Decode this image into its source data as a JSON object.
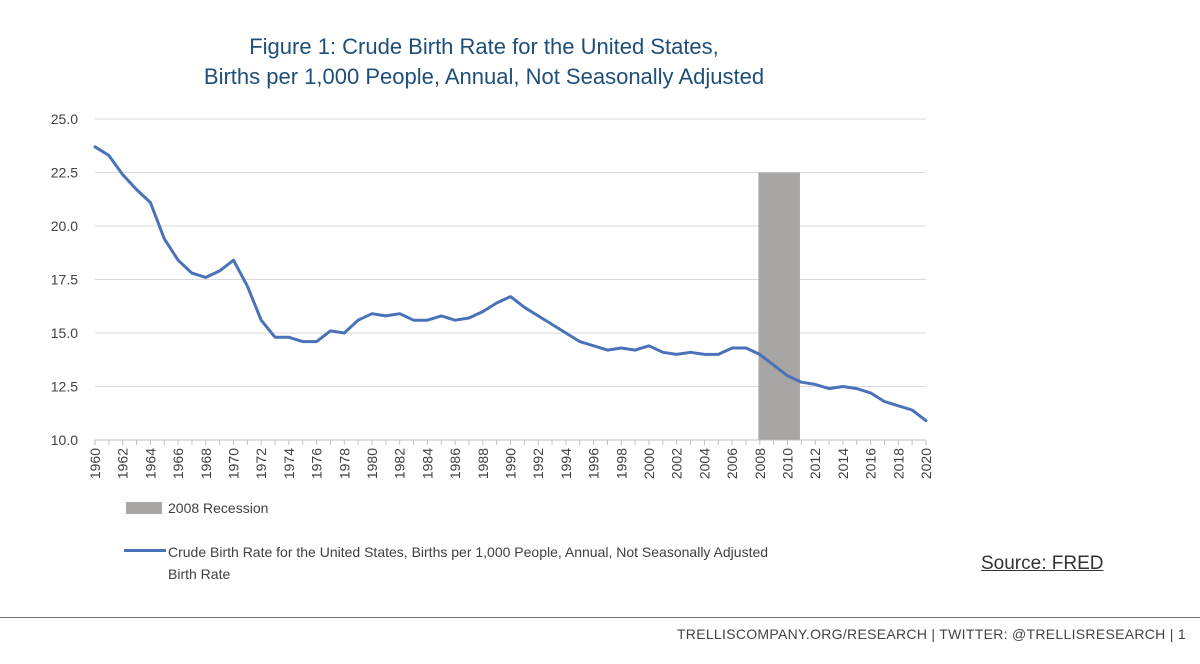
{
  "chart_data": {
    "type": "line",
    "title_lines": [
      "Figure 1: Crude Birth Rate for the United States,",
      "Births per 1,000 People, Annual, Not Seasonally Adjusted"
    ],
    "ylim": [
      10,
      25
    ],
    "y_ticks": [
      "10.0",
      "12.5",
      "15.0",
      "17.5",
      "20.0",
      "22.5",
      "25.0"
    ],
    "x_ticks": [
      "1960",
      "1962",
      "1964",
      "1966",
      "1968",
      "1970",
      "1972",
      "1974",
      "1976",
      "1978",
      "1980",
      "1982",
      "1984",
      "1986",
      "1988",
      "1990",
      "1992",
      "1994",
      "1996",
      "1998",
      "2000",
      "2002",
      "2004",
      "2006",
      "2008",
      "2010",
      "2012",
      "2014",
      "2016",
      "2018",
      "2020"
    ],
    "grid": true,
    "x": [
      1960,
      1961,
      1962,
      1963,
      1964,
      1965,
      1966,
      1967,
      1968,
      1969,
      1970,
      1971,
      1972,
      1973,
      1974,
      1975,
      1976,
      1977,
      1978,
      1979,
      1980,
      1981,
      1982,
      1983,
      1984,
      1985,
      1986,
      1987,
      1988,
      1989,
      1990,
      1991,
      1992,
      1993,
      1994,
      1995,
      1996,
      1997,
      1998,
      1999,
      2000,
      2001,
      2002,
      2003,
      2004,
      2005,
      2006,
      2007,
      2008,
      2009,
      2010,
      2011,
      2012,
      2013,
      2014,
      2015,
      2016,
      2017,
      2018,
      2019,
      2020
    ],
    "series": [
      {
        "name": "Crude Birth Rate for the United States, Births per 1,000 People, Annual, Not Seasonally Adjusted",
        "values": [
          23.7,
          23.3,
          22.4,
          21.7,
          21.1,
          19.4,
          18.4,
          17.8,
          17.6,
          17.9,
          18.4,
          17.2,
          15.6,
          14.8,
          14.8,
          14.6,
          14.6,
          15.1,
          15.0,
          15.6,
          15.9,
          15.8,
          15.9,
          15.6,
          15.6,
          15.8,
          15.6,
          15.7,
          16.0,
          16.4,
          16.7,
          16.2,
          15.8,
          15.4,
          15.0,
          14.6,
          14.4,
          14.2,
          14.3,
          14.2,
          14.4,
          14.1,
          14.0,
          14.1,
          14.0,
          14.0,
          14.3,
          14.3,
          14.0,
          13.5,
          13.0,
          12.7,
          12.6,
          12.4,
          12.5,
          12.4,
          12.2,
          11.8,
          11.6,
          11.4,
          10.9
        ],
        "color": "#4a72b8"
      }
    ],
    "recession": {
      "label": "2008 Recession",
      "start": 2007.9,
      "end": 2010.9,
      "top": 22.5,
      "color": "#a8a5a5"
    },
    "legend": {
      "recession_label": "2008 Recession",
      "series_label_line1": "Crude Birth Rate for the United States, Births per 1,000 People, Annual, Not Seasonally Adjusted",
      "series_label_line2": "Birth Rate"
    }
  },
  "source_text": "Source: FRED",
  "footer_text": "TRELLISCOMPANY.ORG/RESEARCH  |  TWITTER: @TRELLISRESEARCH  |  1"
}
